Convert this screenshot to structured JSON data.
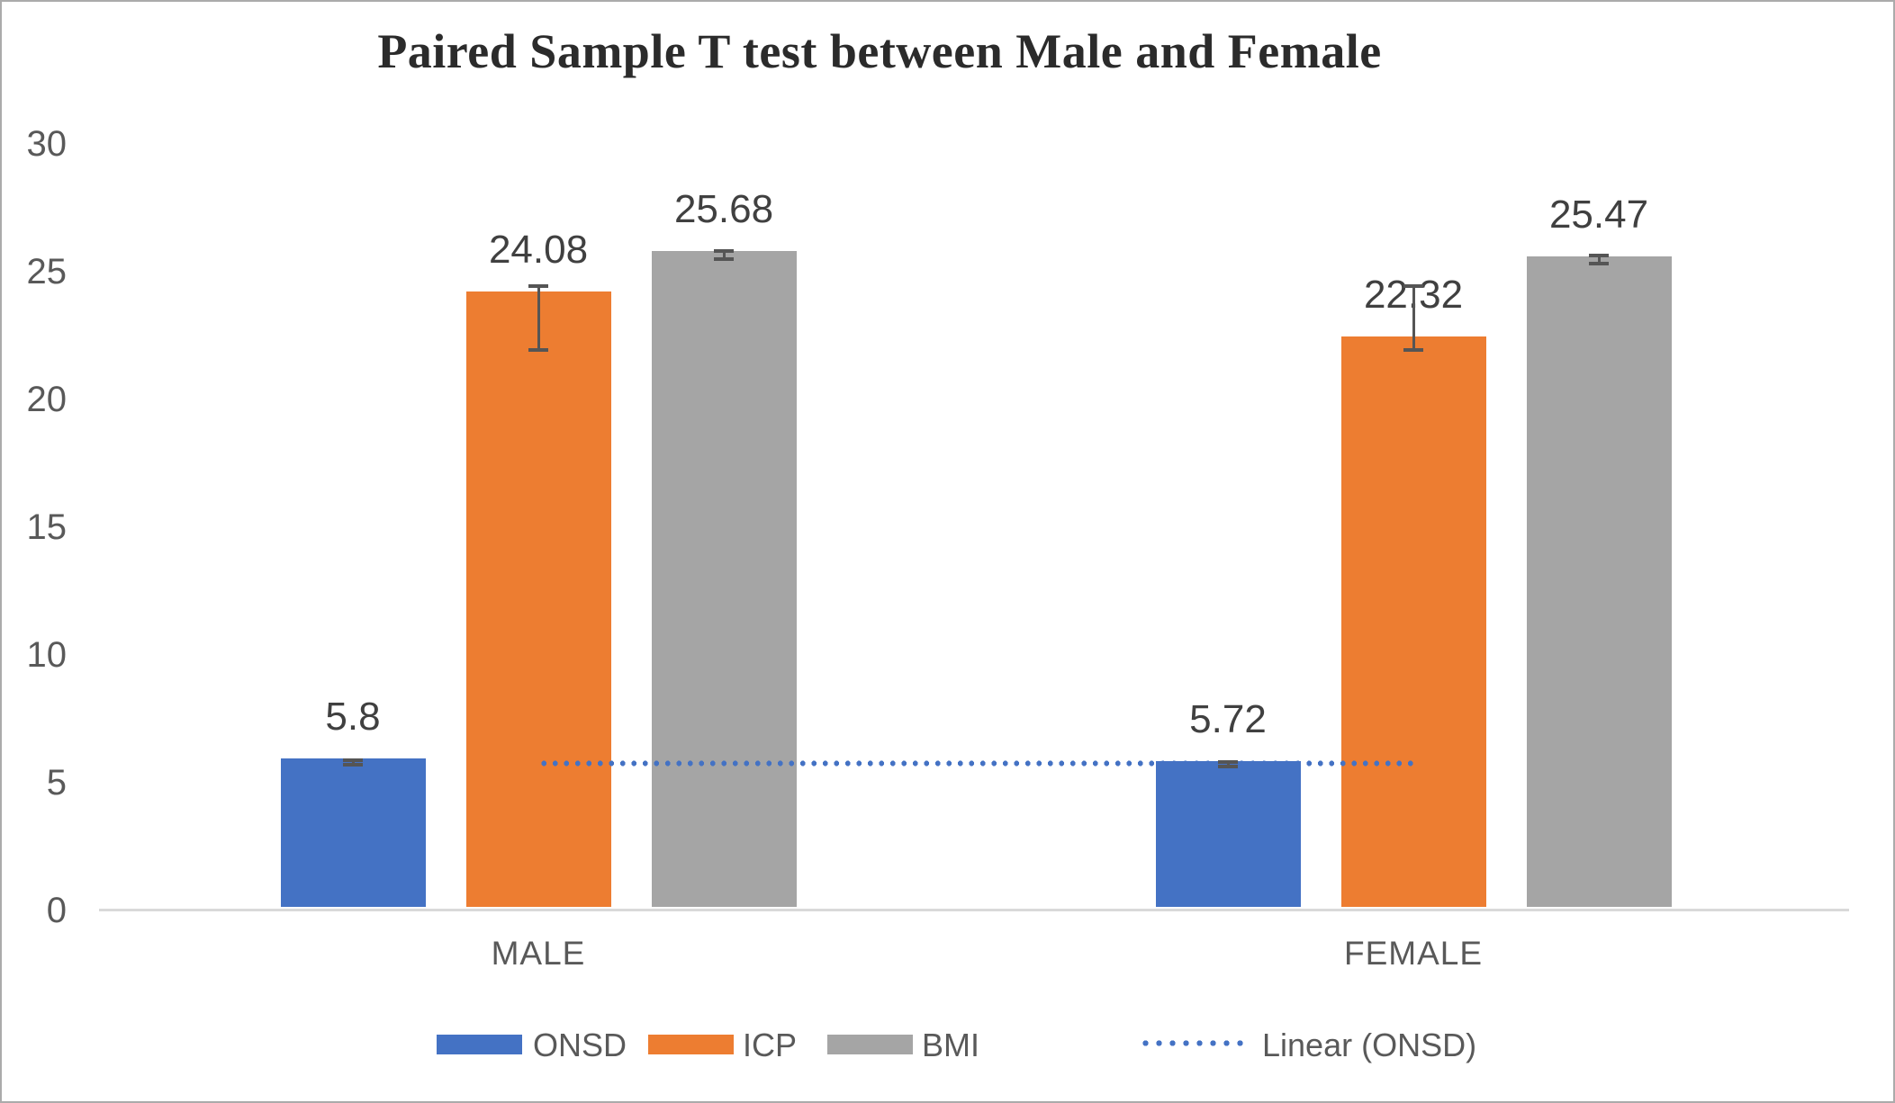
{
  "chart_data": {
    "type": "bar",
    "title": "Paired Sample T test between Male and Female",
    "categories": [
      "MALE",
      "FEMALE"
    ],
    "series": [
      {
        "name": "ONSD",
        "color": "#4472C4",
        "values": [
          5.8,
          5.72
        ],
        "labels": [
          "5.8",
          "5.72"
        ],
        "error_ranges": [
          [
            5.72,
            5.88
          ],
          [
            5.64,
            5.8
          ]
        ]
      },
      {
        "name": "ICP",
        "color": "#ED7D31",
        "values": [
          24.08,
          22.32
        ],
        "labels": [
          "24.08",
          "22.32"
        ],
        "error_ranges": [
          [
            21.95,
            24.45
          ],
          [
            21.95,
            24.45
          ]
        ]
      },
      {
        "name": "BMI",
        "color": "#A5A5A5",
        "values": [
          25.68,
          25.47
        ],
        "labels": [
          "25.68",
          "25.47"
        ],
        "error_ranges": [
          [
            25.5,
            25.82
          ],
          [
            25.33,
            25.62
          ]
        ]
      }
    ],
    "trendline": {
      "name": "Linear (ONSD)",
      "color": "#4472C4",
      "style": "dotted",
      "y_start": 5.8,
      "y_end": 5.72
    },
    "y_axis": {
      "min": 0,
      "max": 30,
      "ticks": [
        0,
        5,
        10,
        15,
        20,
        25,
        30
      ]
    },
    "grid": "off",
    "legend_position": "bottom",
    "legend": {
      "items": [
        {
          "label": "ONSD",
          "swatch": "#4472C4",
          "kind": "rect"
        },
        {
          "label": "ICP",
          "swatch": "#ED7D31",
          "kind": "rect"
        },
        {
          "label": "BMI",
          "swatch": "#A5A5A5",
          "kind": "rect"
        },
        {
          "label": "Linear (ONSD)",
          "swatch": "#4472C4",
          "kind": "dotted"
        }
      ]
    },
    "colors": {
      "error_bar": "#555555",
      "axis_line": "#D9D9D9",
      "text": "#595959"
    }
  }
}
